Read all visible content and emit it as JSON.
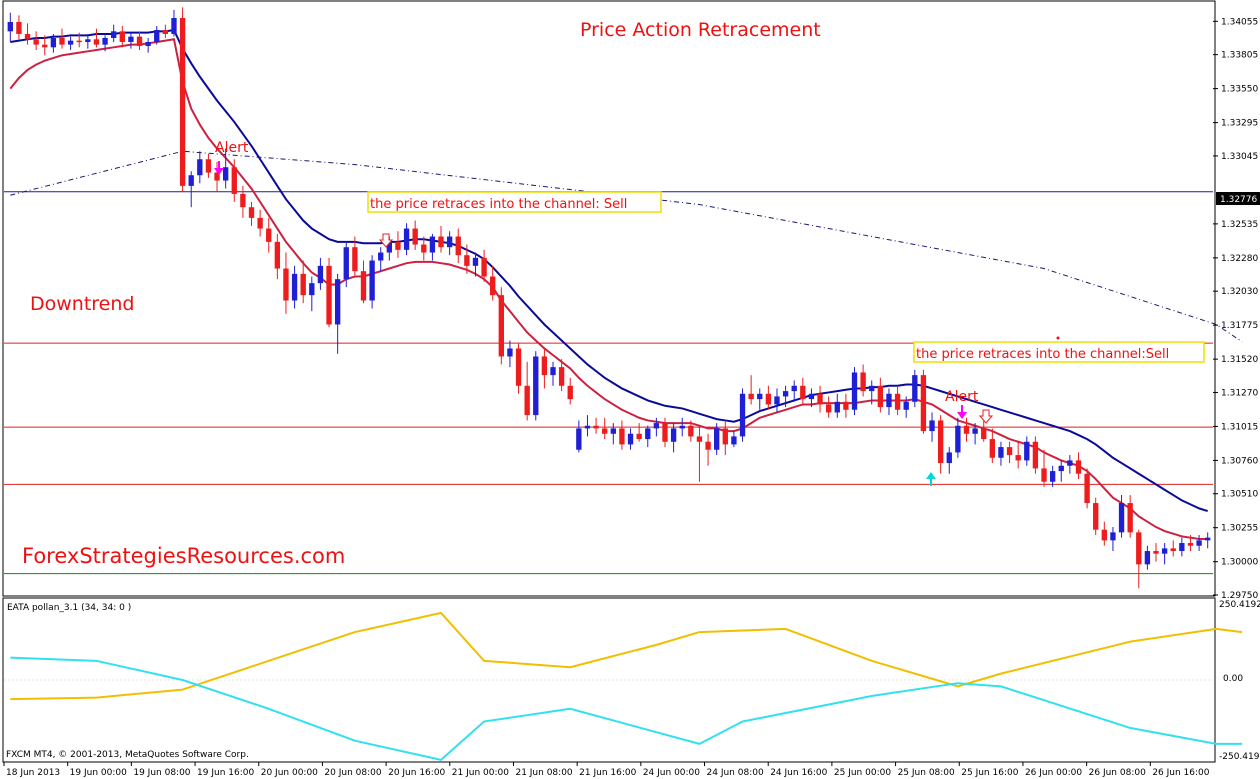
{
  "header": {
    "title": "Price Action Retracement",
    "trend_label": "Downtrend",
    "site_label": "ForexStrategiesResources.com"
  },
  "annotations": {
    "alert_1": "Alert",
    "alert_2": "Alert",
    "retrace_1": "the price retraces into the channel: Sell",
    "retrace_2": "the price retraces into the channel:Sell"
  },
  "colors": {
    "bull": "#1f1fd6",
    "bear": "#ee1c1c",
    "ema_fast": "#cc2140",
    "ema_slow": "#0a0a9a",
    "indicator_gold": "#f2be00",
    "indicator_cyan": "#33e0ee",
    "alert_arrow": "#ff00ff",
    "up_arrow": "#00d7d7",
    "sell_arrow": "#e02020",
    "label_red": "#ee1111",
    "label_box": "#f0e000"
  },
  "indicator": {
    "name": "EATA pollan_3.1 (34, 34: 0 )",
    "ticks": [
      "250.4192",
      "0.00",
      "-250.4192"
    ]
  },
  "footer": {
    "copyright": "FXCM MT4, © 2001-2013, MetaQuotes Software Corp."
  },
  "current_price": "1.32776",
  "chart_data": {
    "type": "candlestick",
    "title": "Price Action Retracement",
    "instrument_note": "",
    "y_ticks": [
      "1.34055",
      "1.33805",
      "1.33550",
      "1.33295",
      "1.33045",
      "1.32535",
      "1.32280",
      "1.32030",
      "1.31775",
      "1.31520",
      "1.31270",
      "1.31015",
      "1.30760",
      "1.30510",
      "1.30255",
      "1.30000",
      "1.29750"
    ],
    "y_range": [
      1.2975,
      1.342
    ],
    "x_ticks": [
      "18 Jun 2013",
      "19 Jun 00:00",
      "19 Jun 08:00",
      "19 Jun 16:00",
      "20 Jun 00:00",
      "20 Jun 08:00",
      "20 Jun 16:00",
      "21 Jun 00:00",
      "21 Jun 08:00",
      "21 Jun 16:00",
      "24 Jun 00:00",
      "24 Jun 08:00",
      "24 Jun 16:00",
      "25 Jun 00:00",
      "25 Jun 08:00",
      "25 Jun 16:00",
      "26 Jun 00:00",
      "26 Jun 08:00",
      "26 Jun 16:00"
    ],
    "horizontal_levels": [
      {
        "price": 1.32776,
        "color": "#1a1aa0"
      },
      {
        "price": 1.3164,
        "color": "#dd2222"
      },
      {
        "price": 1.3101,
        "color": "#dd2222"
      },
      {
        "price": 1.3058,
        "color": "#dd2222"
      },
      {
        "price": 1.2991,
        "color": "#118811"
      }
    ],
    "candles": [
      [
        1.3398,
        1.3412,
        1.339,
        1.3405
      ],
      [
        1.3405,
        1.341,
        1.3392,
        1.3396
      ],
      [
        1.3396,
        1.3404,
        1.3388,
        1.3392
      ],
      [
        1.3392,
        1.3398,
        1.3384,
        1.3388
      ],
      [
        1.3388,
        1.3395,
        1.338,
        1.3386
      ],
      [
        1.3386,
        1.3396,
        1.3382,
        1.3393
      ],
      [
        1.3393,
        1.34,
        1.3385,
        1.3388
      ],
      [
        1.3388,
        1.3394,
        1.3384,
        1.3391
      ],
      [
        1.3391,
        1.3397,
        1.3386,
        1.339
      ],
      [
        1.339,
        1.3396,
        1.3385,
        1.3392
      ],
      [
        1.3392,
        1.34,
        1.3386,
        1.3388
      ],
      [
        1.3388,
        1.3395,
        1.3383,
        1.3393
      ],
      [
        1.3393,
        1.3403,
        1.339,
        1.3398
      ],
      [
        1.3398,
        1.3402,
        1.3386,
        1.339
      ],
      [
        1.339,
        1.3397,
        1.3385,
        1.3394
      ],
      [
        1.3394,
        1.3398,
        1.3384,
        1.3387
      ],
      [
        1.3387,
        1.3393,
        1.3382,
        1.339
      ],
      [
        1.339,
        1.3402,
        1.3388,
        1.3399
      ],
      [
        1.3399,
        1.3403,
        1.3393,
        1.3396
      ],
      [
        1.3396,
        1.3414,
        1.3394,
        1.3408
      ],
      [
        1.3408,
        1.3416,
        1.3278,
        1.3282
      ],
      [
        1.3282,
        1.3293,
        1.3266,
        1.329
      ],
      [
        1.329,
        1.3308,
        1.3284,
        1.3302
      ],
      [
        1.3302,
        1.3306,
        1.3288,
        1.3292
      ],
      [
        1.3292,
        1.33,
        1.3278,
        1.3286
      ],
      [
        1.3286,
        1.331,
        1.328,
        1.3296
      ],
      [
        1.3296,
        1.3302,
        1.327,
        1.3276
      ],
      [
        1.3276,
        1.3282,
        1.3258,
        1.3266
      ],
      [
        1.3266,
        1.327,
        1.3252,
        1.3258
      ],
      [
        1.3258,
        1.3264,
        1.3244,
        1.325
      ],
      [
        1.325,
        1.3258,
        1.3232,
        1.324
      ],
      [
        1.324,
        1.3246,
        1.3212,
        1.322
      ],
      [
        1.322,
        1.3232,
        1.3186,
        1.3196
      ],
      [
        1.3196,
        1.3222,
        1.319,
        1.3216
      ],
      [
        1.3216,
        1.3226,
        1.3194,
        1.32
      ],
      [
        1.32,
        1.3214,
        1.3188,
        1.3209
      ],
      [
        1.3209,
        1.3228,
        1.3204,
        1.3222
      ],
      [
        1.3222,
        1.3228,
        1.3176,
        1.3178
      ],
      [
        1.3178,
        1.3216,
        1.3156,
        1.3212
      ],
      [
        1.3212,
        1.324,
        1.3206,
        1.3236
      ],
      [
        1.3236,
        1.3244,
        1.3214,
        1.3218
      ],
      [
        1.3218,
        1.3226,
        1.3194,
        1.3196
      ],
      [
        1.3196,
        1.323,
        1.319,
        1.3226
      ],
      [
        1.3226,
        1.3236,
        1.3218,
        1.3232
      ],
      [
        1.3232,
        1.3244,
        1.3226,
        1.324
      ],
      [
        1.324,
        1.3248,
        1.3228,
        1.3234
      ],
      [
        1.3234,
        1.3254,
        1.323,
        1.325
      ],
      [
        1.325,
        1.3256,
        1.3234,
        1.3238
      ],
      [
        1.3238,
        1.3244,
        1.3226,
        1.3232
      ],
      [
        1.3232,
        1.3246,
        1.3226,
        1.3244
      ],
      [
        1.3244,
        1.3252,
        1.3232,
        1.3236
      ],
      [
        1.3236,
        1.3248,
        1.323,
        1.3244
      ],
      [
        1.3244,
        1.325,
        1.3224,
        1.323
      ],
      [
        1.323,
        1.3238,
        1.3216,
        1.3222
      ],
      [
        1.3222,
        1.3232,
        1.3214,
        1.3228
      ],
      [
        1.3228,
        1.3234,
        1.321,
        1.3214
      ],
      [
        1.3214,
        1.3222,
        1.3196,
        1.32
      ],
      [
        1.32,
        1.3206,
        1.3148,
        1.3154
      ],
      [
        1.3154,
        1.3166,
        1.3146,
        1.316
      ],
      [
        1.316,
        1.3164,
        1.3126,
        1.3132
      ],
      [
        1.3132,
        1.315,
        1.3106,
        1.311
      ],
      [
        1.311,
        1.3158,
        1.3106,
        1.3154
      ],
      [
        1.3154,
        1.316,
        1.313,
        1.314
      ],
      [
        1.314,
        1.315,
        1.3132,
        1.3146
      ],
      [
        1.3146,
        1.3152,
        1.3128,
        1.3132
      ],
      [
        1.3132,
        1.3138,
        1.3118,
        1.3122
      ],
      [
        1.3084,
        1.3106,
        1.3082,
        1.31
      ],
      [
        1.31,
        1.311,
        1.3094,
        1.3102
      ],
      [
        1.3102,
        1.3108,
        1.3096,
        1.31
      ],
      [
        1.31,
        1.3108,
        1.3092,
        1.3096
      ],
      [
        1.3096,
        1.3104,
        1.3088,
        1.31
      ],
      [
        1.31,
        1.3106,
        1.3084,
        1.3088
      ],
      [
        1.3088,
        1.31,
        1.3084,
        1.3096
      ],
      [
        1.3096,
        1.3104,
        1.309,
        1.3092
      ],
      [
        1.3092,
        1.3102,
        1.3086,
        1.31
      ],
      [
        1.31,
        1.3108,
        1.3094,
        1.3104
      ],
      [
        1.3104,
        1.3108,
        1.3086,
        1.309
      ],
      [
        1.309,
        1.3104,
        1.3082,
        1.31
      ],
      [
        1.31,
        1.3108,
        1.3094,
        1.3102
      ],
      [
        1.3102,
        1.3106,
        1.309,
        1.3094
      ],
      [
        1.3094,
        1.3102,
        1.306,
        1.309
      ],
      [
        1.309,
        1.3096,
        1.3072,
        1.3084
      ],
      [
        1.3084,
        1.3104,
        1.308,
        1.31
      ],
      [
        1.31,
        1.3106,
        1.308,
        1.3088
      ],
      [
        1.3088,
        1.3098,
        1.3086,
        1.3094
      ],
      [
        1.3094,
        1.313,
        1.309,
        1.3126
      ],
      [
        1.3126,
        1.314,
        1.3118,
        1.3122
      ],
      [
        1.3122,
        1.313,
        1.3114,
        1.3126
      ],
      [
        1.3126,
        1.3132,
        1.3114,
        1.3118
      ],
      [
        1.3118,
        1.313,
        1.3112,
        1.3124
      ],
      [
        1.3124,
        1.3132,
        1.3116,
        1.3128
      ],
      [
        1.3128,
        1.3136,
        1.312,
        1.3132
      ],
      [
        1.3132,
        1.3138,
        1.3118,
        1.3122
      ],
      [
        1.3122,
        1.313,
        1.3116,
        1.3126
      ],
      [
        1.3126,
        1.3132,
        1.3112,
        1.3118
      ],
      [
        1.3118,
        1.3124,
        1.3108,
        1.3112
      ],
      [
        1.3112,
        1.3126,
        1.3108,
        1.312
      ],
      [
        1.312,
        1.3126,
        1.3108,
        1.3114
      ],
      [
        1.3114,
        1.3146,
        1.311,
        1.3142
      ],
      [
        1.3142,
        1.3148,
        1.3124,
        1.3128
      ],
      [
        1.3128,
        1.3136,
        1.3118,
        1.3132
      ],
      [
        1.3132,
        1.3138,
        1.3112,
        1.3116
      ],
      [
        1.3116,
        1.313,
        1.311,
        1.3126
      ],
      [
        1.3126,
        1.3132,
        1.311,
        1.3114
      ],
      [
        1.3114,
        1.3124,
        1.3108,
        1.312
      ],
      [
        1.312,
        1.3144,
        1.3116,
        1.314
      ],
      [
        1.314,
        1.3144,
        1.3096,
        1.3098
      ],
      [
        1.3098,
        1.3112,
        1.309,
        1.3106
      ],
      [
        1.3106,
        1.311,
        1.3066,
        1.3074
      ],
      [
        1.3074,
        1.3086,
        1.3066,
        1.3082
      ],
      [
        1.3082,
        1.3108,
        1.3078,
        1.3102
      ],
      [
        1.3102,
        1.3108,
        1.309,
        1.3096
      ],
      [
        1.3096,
        1.3104,
        1.3088,
        1.31
      ],
      [
        1.31,
        1.3106,
        1.309,
        1.3092
      ],
      [
        1.3092,
        1.31,
        1.3074,
        1.3078
      ],
      [
        1.3078,
        1.309,
        1.3072,
        1.3086
      ],
      [
        1.3086,
        1.309,
        1.3074,
        1.308
      ],
      [
        1.308,
        1.309,
        1.307,
        1.3076
      ],
      [
        1.3076,
        1.3094,
        1.3072,
        1.309
      ],
      [
        1.309,
        1.3094,
        1.3066,
        1.307
      ],
      [
        1.307,
        1.3084,
        1.3056,
        1.306
      ],
      [
        1.306,
        1.3072,
        1.3056,
        1.3068
      ],
      [
        1.3068,
        1.3076,
        1.306,
        1.3072
      ],
      [
        1.3072,
        1.308,
        1.3066,
        1.3076
      ],
      [
        1.3076,
        1.3082,
        1.3062,
        1.3066
      ],
      [
        1.3066,
        1.307,
        1.304,
        1.3044
      ],
      [
        1.3044,
        1.3048,
        1.302,
        1.3024
      ],
      [
        1.3024,
        1.303,
        1.3012,
        1.3016
      ],
      [
        1.3016,
        1.3026,
        1.3008,
        1.3022
      ],
      [
        1.3022,
        1.305,
        1.3018,
        1.3044
      ],
      [
        1.3044,
        1.305,
        1.3018,
        1.3022
      ],
      [
        1.3022,
        1.3024,
        1.298,
        1.2998
      ],
      [
        1.2998,
        1.3012,
        1.2994,
        1.3008
      ],
      [
        1.3008,
        1.3014,
        1.3,
        1.3006
      ],
      [
        1.3006,
        1.3014,
        1.2998,
        1.301
      ],
      [
        1.301,
        1.3016,
        1.3004,
        1.3008
      ],
      [
        1.3008,
        1.3018,
        1.3004,
        1.3014
      ],
      [
        1.3014,
        1.302,
        1.3008,
        1.3012
      ],
      [
        1.3012,
        1.302,
        1.3008,
        1.3016
      ],
      [
        1.3016,
        1.3022,
        1.301,
        1.3018
      ]
    ],
    "ema_fast": [
      1.3355,
      1.3363,
      1.3369,
      1.3373,
      1.3376,
      1.3378,
      1.338,
      1.3381,
      1.3382,
      1.3383,
      1.3384,
      1.3385,
      1.3386,
      1.3387,
      1.3388,
      1.3388,
      1.3389,
      1.339,
      1.3391,
      1.3392,
      1.336,
      1.334,
      1.3328,
      1.3318,
      1.331,
      1.3303,
      1.3296,
      1.3288,
      1.328,
      1.327,
      1.326,
      1.325,
      1.324,
      1.3232,
      1.3224,
      1.3217,
      1.3213,
      1.3208,
      1.3208,
      1.3212,
      1.3214,
      1.3214,
      1.3216,
      1.3218,
      1.322,
      1.3222,
      1.3224,
      1.3225,
      1.3225,
      1.3225,
      1.3224,
      1.3223,
      1.3221,
      1.3219,
      1.3216,
      1.3212,
      1.3206,
      1.3196,
      1.3188,
      1.318,
      1.3172,
      1.3166,
      1.316,
      1.3155,
      1.315,
      1.3145,
      1.3138,
      1.3132,
      1.3127,
      1.3122,
      1.3118,
      1.3114,
      1.3111,
      1.3108,
      1.3106,
      1.3105,
      1.3104,
      1.3104,
      1.3104,
      1.3104,
      1.3102,
      1.31,
      1.31,
      1.3098,
      1.3098,
      1.31,
      1.3104,
      1.3108,
      1.311,
      1.3112,
      1.3114,
      1.3116,
      1.3118,
      1.3118,
      1.3119,
      1.3119,
      1.3119,
      1.3119,
      1.3119,
      1.312,
      1.3121,
      1.3121,
      1.3121,
      1.3121,
      1.3121,
      1.3122,
      1.312,
      1.3118,
      1.3114,
      1.311,
      1.3106,
      1.3104,
      1.3102,
      1.31,
      1.3098,
      1.3095,
      1.3092,
      1.309,
      1.3088,
      1.3086,
      1.3082,
      1.3079,
      1.3076,
      1.3074,
      1.3072,
      1.3068,
      1.3062,
      1.3055,
      1.3048,
      1.3044,
      1.304,
      1.3034,
      1.303,
      1.3026,
      1.3023,
      1.3021,
      1.3019,
      1.3018,
      1.3017,
      1.3017
    ],
    "ema_slow": [
      1.339,
      1.3391,
      1.3392,
      1.3393,
      1.3393,
      1.3394,
      1.3394,
      1.3395,
      1.3395,
      1.3395,
      1.3396,
      1.3396,
      1.3396,
      1.3397,
      1.3397,
      1.3397,
      1.3397,
      1.3398,
      1.3398,
      1.3399,
      1.3385,
      1.3374,
      1.3364,
      1.3355,
      1.3346,
      1.3338,
      1.333,
      1.3321,
      1.3312,
      1.3302,
      1.3292,
      1.3282,
      1.3272,
      1.3264,
      1.3256,
      1.325,
      1.3246,
      1.3242,
      1.324,
      1.324,
      1.324,
      1.3239,
      1.3239,
      1.3239,
      1.324,
      1.324,
      1.3241,
      1.3242,
      1.3242,
      1.3241,
      1.324,
      1.3239,
      1.3237,
      1.3234,
      1.3231,
      1.3227,
      1.3221,
      1.3214,
      1.3207,
      1.3199,
      1.3192,
      1.3185,
      1.3178,
      1.3172,
      1.3166,
      1.316,
      1.3154,
      1.3148,
      1.3143,
      1.3138,
      1.3134,
      1.313,
      1.3127,
      1.3124,
      1.3121,
      1.3119,
      1.3117,
      1.3116,
      1.3115,
      1.3113,
      1.3111,
      1.3109,
      1.3107,
      1.3106,
      1.3105,
      1.3107,
      1.311,
      1.3113,
      1.3115,
      1.3117,
      1.3119,
      1.3121,
      1.3123,
      1.3125,
      1.3126,
      1.3127,
      1.3128,
      1.3129,
      1.313,
      1.313,
      1.3131,
      1.3131,
      1.3132,
      1.3132,
      1.3133,
      1.3133,
      1.3132,
      1.313,
      1.3128,
      1.3126,
      1.3124,
      1.3122,
      1.312,
      1.3118,
      1.3116,
      1.3114,
      1.3112,
      1.311,
      1.3108,
      1.3106,
      1.3104,
      1.3102,
      1.31,
      1.3098,
      1.3095,
      1.3092,
      1.3088,
      1.3083,
      1.3078,
      1.3074,
      1.307,
      1.3066,
      1.3062,
      1.3058,
      1.3054,
      1.305,
      1.3046,
      1.3043,
      1.304,
      1.3038
    ],
    "ma_long_dashed": [
      [
        0,
        1.3275
      ],
      [
        20,
        1.3308
      ],
      [
        40,
        1.3298
      ],
      [
        80,
        1.3268
      ],
      [
        120,
        1.322
      ],
      [
        140,
        1.3178
      ],
      [
        143,
        1.3165
      ]
    ],
    "indicator_series": {
      "gold": [
        [
          0,
          -60
        ],
        [
          10,
          -55
        ],
        [
          20,
          -30
        ],
        [
          30,
          60
        ],
        [
          40,
          150
        ],
        [
          50,
          210
        ],
        [
          55,
          60
        ],
        [
          65,
          40
        ],
        [
          75,
          110
        ],
        [
          80,
          150
        ],
        [
          90,
          160
        ],
        [
          100,
          60
        ],
        [
          110,
          -20
        ],
        [
          115,
          20
        ],
        [
          130,
          120
        ],
        [
          140,
          160
        ],
        [
          143,
          150
        ]
      ],
      "cyan": [
        [
          0,
          70
        ],
        [
          10,
          60
        ],
        [
          20,
          0
        ],
        [
          30,
          -90
        ],
        [
          40,
          -190
        ],
        [
          50,
          -250
        ],
        [
          55,
          -130
        ],
        [
          65,
          -90
        ],
        [
          80,
          -200
        ],
        [
          85,
          -130
        ],
        [
          100,
          -50
        ],
        [
          110,
          -10
        ],
        [
          115,
          -20
        ],
        [
          130,
          -150
        ],
        [
          140,
          -200
        ],
        [
          143,
          -200
        ]
      ],
      "range": [
        -250.4192,
        250.4192
      ]
    }
  }
}
